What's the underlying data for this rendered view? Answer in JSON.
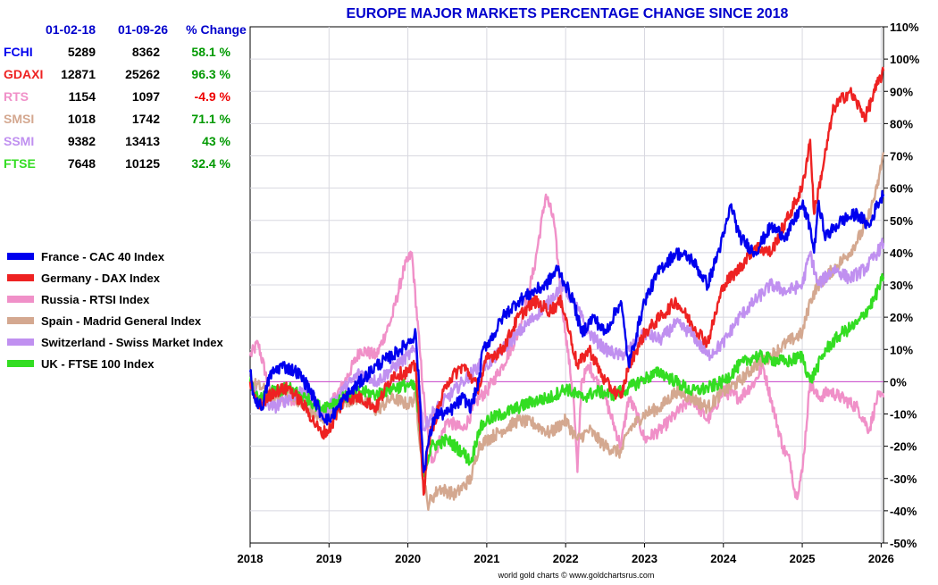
{
  "chart_data": {
    "type": "line",
    "title": "EUROPE MAJOR MARKETS PERCENTAGE CHANGE SINCE 2018",
    "footer": "world gold charts © www.goldchartsrus.com",
    "x_ticks": [
      "2018",
      "2019",
      "2020",
      "2021",
      "2022",
      "2023",
      "2024",
      "2025",
      "2026"
    ],
    "xlim": [
      2018,
      2026.03
    ],
    "ylim": [
      -50,
      110
    ],
    "y_ticks": [
      110,
      100,
      90,
      80,
      70,
      60,
      50,
      40,
      30,
      20,
      10,
      0,
      -10,
      -20,
      -30,
      -40,
      -50
    ],
    "y_tick_labels": [
      "110%",
      "100%",
      "90%",
      "80%",
      "70%",
      "60%",
      "50%",
      "40%",
      "30%",
      "20%",
      "10%",
      "0%",
      "-10%",
      "-20%",
      "-30%",
      "-40%",
      "-50%"
    ],
    "grid": true,
    "legend_position": "left",
    "table": {
      "headers": [
        "01-02-18",
        "01-09-26",
        "% Change"
      ],
      "header_color": "#0000cc",
      "rows": [
        {
          "name": "FCHI",
          "start": "5289",
          "end": "8362",
          "change": "58.1 %",
          "color": "#0000ee",
          "change_color": "#009900"
        },
        {
          "name": "GDAXI",
          "start": "12871",
          "end": "25262",
          "change": "96.3 %",
          "color": "#ee2222",
          "change_color": "#009900"
        },
        {
          "name": "RTS",
          "start": "1154",
          "end": "1097",
          "change": "-4.9 %",
          "color": "#f090c8",
          "change_color": "#ee0000"
        },
        {
          "name": "SMSI",
          "start": "1018",
          "end": "1742",
          "change": "71.1 %",
          "color": "#d4a890",
          "change_color": "#009900"
        },
        {
          "name": "SSMI",
          "start": "9382",
          "end": "13413",
          "change": "43 %",
          "color": "#c090f0",
          "change_color": "#009900"
        },
        {
          "name": "FTSE",
          "start": "7648",
          "end": "10125",
          "change": "32.4 %",
          "color": "#33dd22",
          "change_color": "#009900"
        }
      ]
    },
    "series": [
      {
        "name": "Russia - RTSI Index",
        "color": "#f090c8",
        "x": [
          2018.0,
          2018.1,
          2018.25,
          2018.4,
          2018.6,
          2018.75,
          2018.9,
          2019.0,
          2019.2,
          2019.4,
          2019.6,
          2019.8,
          2019.95,
          2020.05,
          2020.15,
          2020.22,
          2020.3,
          2020.5,
          2020.7,
          2020.9,
          2021.0,
          2021.2,
          2021.4,
          2021.6,
          2021.75,
          2021.85,
          2021.95,
          2022.0,
          2022.1,
          2022.15,
          2022.2,
          2022.3,
          2022.5,
          2022.7,
          2022.8,
          2022.9,
          2023.0,
          2023.2,
          2023.4,
          2023.6,
          2023.8,
          2024.0,
          2024.2,
          2024.4,
          2024.5,
          2024.6,
          2024.75,
          2024.85,
          2024.92,
          2025.0,
          2025.1,
          2025.2,
          2025.35,
          2025.5,
          2025.7,
          2025.85,
          2025.95,
          2026.03
        ],
        "values": [
          8,
          12,
          -3,
          -6,
          -5,
          -4,
          -10,
          -8,
          0,
          10,
          8,
          20,
          35,
          40,
          10,
          -10,
          -25,
          -12,
          -15,
          -5,
          -3,
          5,
          15,
          35,
          58,
          50,
          25,
          15,
          -5,
          -28,
          0,
          5,
          -5,
          -20,
          -5,
          -10,
          -18,
          -15,
          -10,
          -5,
          -12,
          -3,
          -5,
          0,
          5,
          -5,
          -20,
          -25,
          -36,
          -28,
          0,
          -5,
          -3,
          -5,
          -8,
          -15,
          -5,
          -4.9
        ]
      },
      {
        "name": "Spain - Madrid General Index",
        "color": "#d4a890",
        "x": [
          2018.0,
          2018.15,
          2018.3,
          2018.5,
          2018.7,
          2018.9,
          2019.0,
          2019.2,
          2019.4,
          2019.6,
          2019.8,
          2020.0,
          2020.1,
          2020.2,
          2020.25,
          2020.4,
          2020.6,
          2020.8,
          2020.9,
          2021.0,
          2021.2,
          2021.4,
          2021.6,
          2021.8,
          2022.0,
          2022.15,
          2022.3,
          2022.5,
          2022.7,
          2022.8,
          2023.0,
          2023.2,
          2023.4,
          2023.6,
          2023.8,
          2024.0,
          2024.2,
          2024.4,
          2024.6,
          2024.8,
          2025.0,
          2025.1,
          2025.2,
          2025.4,
          2025.6,
          2025.8,
          2025.95,
          2026.03
        ],
        "values": [
          0,
          -2,
          -5,
          -3,
          -8,
          -12,
          -11,
          -6,
          -5,
          -9,
          -5,
          -7,
          -5,
          -30,
          -38,
          -33,
          -35,
          -30,
          -20,
          -18,
          -15,
          -12,
          -13,
          -16,
          -12,
          -18,
          -15,
          -20,
          -22,
          -15,
          -10,
          -8,
          -3,
          -5,
          -8,
          -3,
          0,
          5,
          8,
          12,
          15,
          25,
          30,
          35,
          40,
          48,
          60,
          71.1
        ]
      },
      {
        "name": "Switzerland - Swiss Market Index",
        "color": "#c090f0",
        "x": [
          2018.0,
          2018.1,
          2018.3,
          2018.5,
          2018.7,
          2018.9,
          2019.0,
          2019.2,
          2019.4,
          2019.6,
          2019.8,
          2020.0,
          2020.1,
          2020.2,
          2020.3,
          2020.5,
          2020.7,
          2020.9,
          2021.0,
          2021.2,
          2021.4,
          2021.6,
          2021.8,
          2021.95,
          2022.1,
          2022.3,
          2022.5,
          2022.7,
          2022.9,
          2023.0,
          2023.2,
          2023.4,
          2023.6,
          2023.8,
          2024.0,
          2024.2,
          2024.4,
          2024.6,
          2024.8,
          2025.0,
          2025.1,
          2025.2,
          2025.4,
          2025.6,
          2025.8,
          2025.95,
          2026.03
        ],
        "values": [
          0,
          -5,
          -8,
          -5,
          -2,
          -10,
          -8,
          -2,
          3,
          0,
          4,
          8,
          10,
          -15,
          -10,
          -5,
          0,
          5,
          5,
          10,
          15,
          20,
          25,
          30,
          25,
          15,
          10,
          8,
          12,
          15,
          13,
          18,
          15,
          8,
          12,
          20,
          25,
          30,
          28,
          30,
          40,
          30,
          35,
          32,
          35,
          40,
          43
        ]
      },
      {
        "name": "UK - FTSE 100 Index",
        "color": "#33dd22",
        "x": [
          2018.0,
          2018.1,
          2018.3,
          2018.5,
          2018.7,
          2018.9,
          2019.0,
          2019.2,
          2019.4,
          2019.6,
          2019.8,
          2020.0,
          2020.1,
          2020.2,
          2020.3,
          2020.5,
          2020.7,
          2020.8,
          2020.9,
          2021.0,
          2021.2,
          2021.4,
          2021.6,
          2021.8,
          2022.0,
          2022.2,
          2022.4,
          2022.6,
          2022.8,
          2023.0,
          2023.2,
          2023.4,
          2023.6,
          2023.8,
          2024.0,
          2024.2,
          2024.4,
          2024.6,
          2024.8,
          2025.0,
          2025.1,
          2025.3,
          2025.5,
          2025.7,
          2025.9,
          2026.03
        ],
        "values": [
          0,
          -6,
          -3,
          -2,
          -5,
          -8,
          -7,
          -5,
          -3,
          -4,
          -2,
          -1,
          -2,
          -28,
          -20,
          -18,
          -22,
          -25,
          -15,
          -12,
          -10,
          -8,
          -6,
          -5,
          -2,
          -5,
          -3,
          -4,
          -2,
          1,
          3,
          0,
          -3,
          -2,
          0,
          5,
          8,
          7,
          6,
          8,
          0,
          10,
          15,
          18,
          25,
          32.4
        ]
      },
      {
        "name": "Germany - DAX Index",
        "color": "#ee2222",
        "x": [
          2018.0,
          2018.1,
          2018.3,
          2018.5,
          2018.7,
          2018.9,
          2019.0,
          2019.2,
          2019.4,
          2019.6,
          2019.8,
          2020.0,
          2020.1,
          2020.2,
          2020.25,
          2020.3,
          2020.5,
          2020.7,
          2020.9,
          2021.0,
          2021.2,
          2021.4,
          2021.6,
          2021.8,
          2021.95,
          2022.05,
          2022.15,
          2022.3,
          2022.5,
          2022.7,
          2022.8,
          2022.9,
          2023.0,
          2023.2,
          2023.4,
          2023.6,
          2023.8,
          2024.0,
          2024.2,
          2024.4,
          2024.6,
          2024.8,
          2025.0,
          2025.1,
          2025.15,
          2025.25,
          2025.4,
          2025.6,
          2025.8,
          2025.95,
          2026.03
        ],
        "values": [
          0,
          -8,
          -3,
          -2,
          -8,
          -16,
          -15,
          -5,
          -5,
          -8,
          2,
          3,
          5,
          -35,
          -20,
          -15,
          0,
          5,
          -2,
          7,
          10,
          20,
          25,
          22,
          25,
          15,
          5,
          10,
          0,
          -5,
          5,
          10,
          15,
          20,
          25,
          18,
          12,
          30,
          35,
          42,
          40,
          50,
          60,
          75,
          52,
          65,
          85,
          90,
          82,
          92,
          96.3
        ]
      },
      {
        "name": "France - CAC 40 Index",
        "color": "#0000ee",
        "x": [
          2018.0,
          2018.05,
          2018.15,
          2018.25,
          2018.4,
          2018.6,
          2018.75,
          2018.9,
          2019.0,
          2019.2,
          2019.4,
          2019.6,
          2019.8,
          2020.0,
          2020.1,
          2020.15,
          2020.2,
          2020.25,
          2020.35,
          2020.5,
          2020.7,
          2020.8,
          2020.9,
          2020.95,
          2021.1,
          2021.2,
          2021.4,
          2021.6,
          2021.75,
          2021.9,
          2022.0,
          2022.1,
          2022.2,
          2022.35,
          2022.5,
          2022.7,
          2022.8,
          2022.9,
          2023.0,
          2023.2,
          2023.4,
          2023.6,
          2023.8,
          2024.0,
          2024.1,
          2024.2,
          2024.4,
          2024.6,
          2024.8,
          2025.0,
          2025.1,
          2025.15,
          2025.2,
          2025.3,
          2025.5,
          2025.7,
          2025.85,
          2025.95,
          2026.03
        ],
        "values": [
          3,
          -5,
          -8,
          2,
          5,
          3,
          -2,
          -10,
          -12,
          -5,
          0,
          5,
          8,
          12,
          15,
          -5,
          -28,
          -20,
          -10,
          -10,
          -5,
          -8,
          0,
          10,
          15,
          20,
          25,
          28,
          30,
          35,
          30,
          25,
          15,
          20,
          15,
          25,
          5,
          15,
          25,
          35,
          40,
          38,
          30,
          45,
          55,
          45,
          40,
          48,
          45,
          55,
          48,
          40,
          55,
          45,
          50,
          52,
          48,
          55,
          58.1
        ]
      }
    ],
    "legend": [
      {
        "label": "France - CAC 40 Index",
        "color": "#0000ee"
      },
      {
        "label": "Germany - DAX Index",
        "color": "#ee2222"
      },
      {
        "label": "Russia - RTSI Index",
        "color": "#f090c8"
      },
      {
        "label": "Spain - Madrid General Index",
        "color": "#d4a890"
      },
      {
        "label": "Switzerland - Swiss Market Index",
        "color": "#c090f0"
      },
      {
        "label": "UK - FTSE 100 Index",
        "color": "#33dd22"
      }
    ]
  }
}
